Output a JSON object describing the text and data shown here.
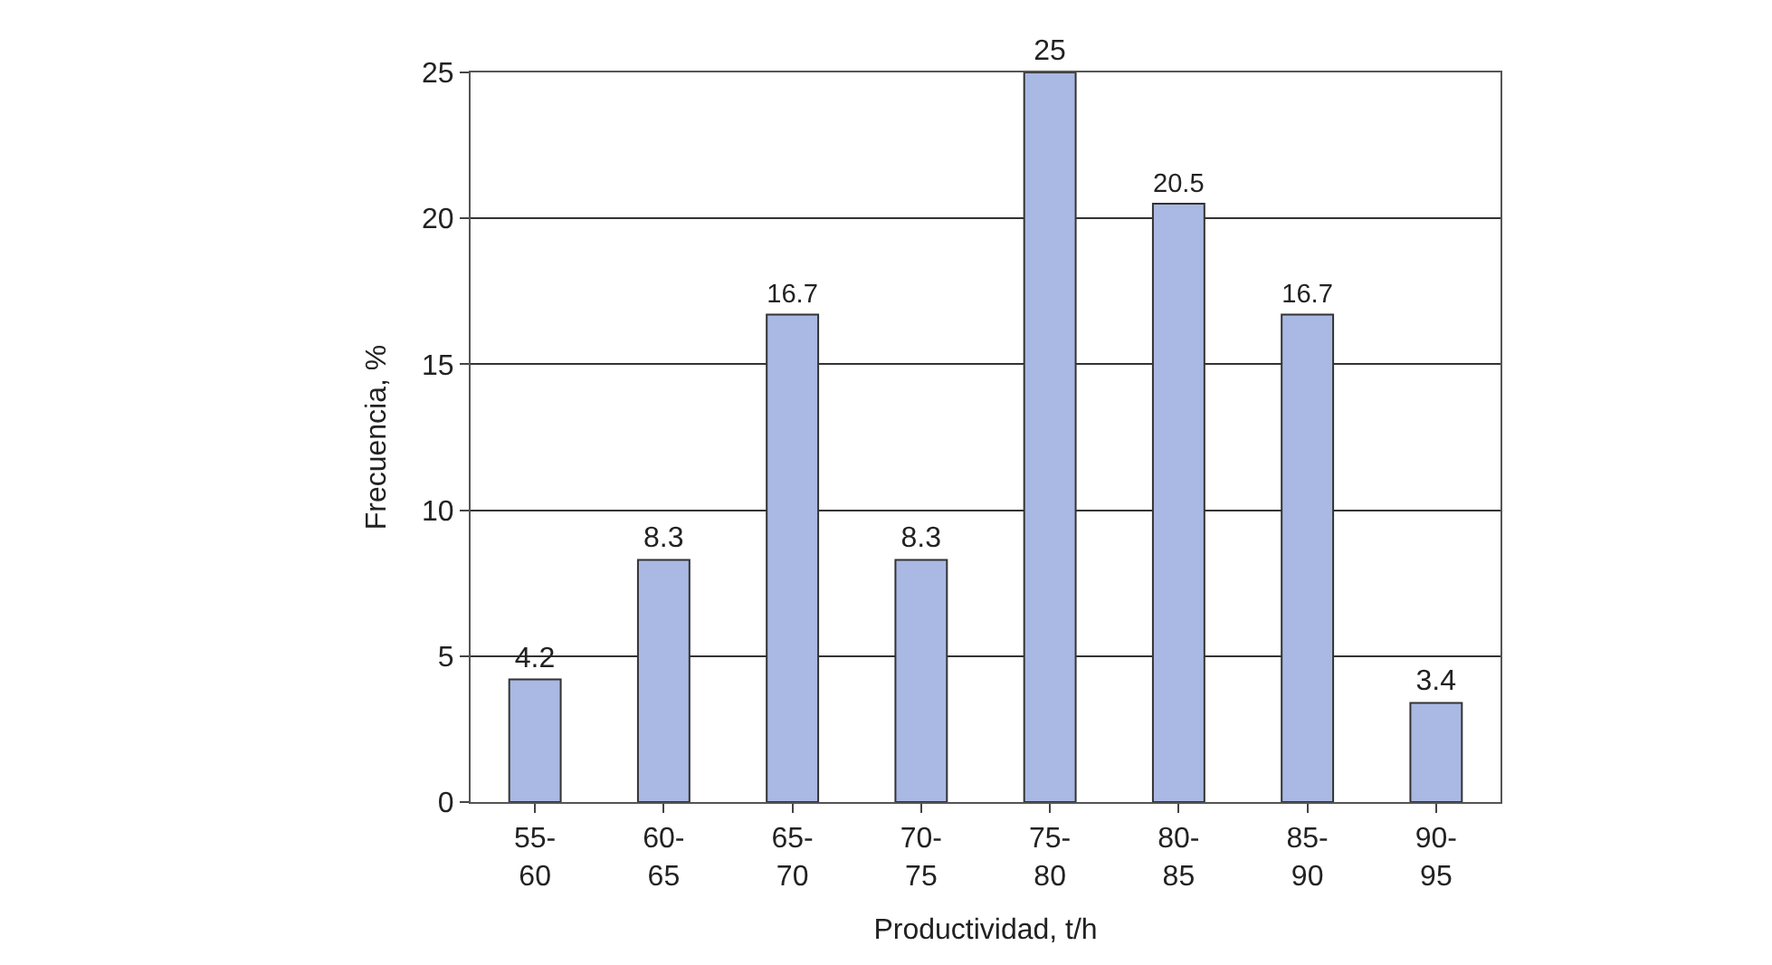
{
  "chart_data": {
    "type": "bar",
    "xlabel": "Productividad, t/h",
    "ylabel": "Frecuencia, %",
    "categories": [
      "55-\n60",
      "60-\n65",
      "65-\n70",
      "70-\n75",
      "75-\n80",
      "80-\n85",
      "85-\n90",
      "90-\n95"
    ],
    "values": [
      4.2,
      8.3,
      16.7,
      8.3,
      25,
      20.5,
      16.7,
      3.4
    ],
    "color": "#a9b9e3",
    "ylim": [
      0,
      25
    ],
    "yticks": [
      0,
      5,
      10,
      15,
      20,
      25
    ],
    "grid": "y",
    "data_labels": true,
    "legend": false
  }
}
